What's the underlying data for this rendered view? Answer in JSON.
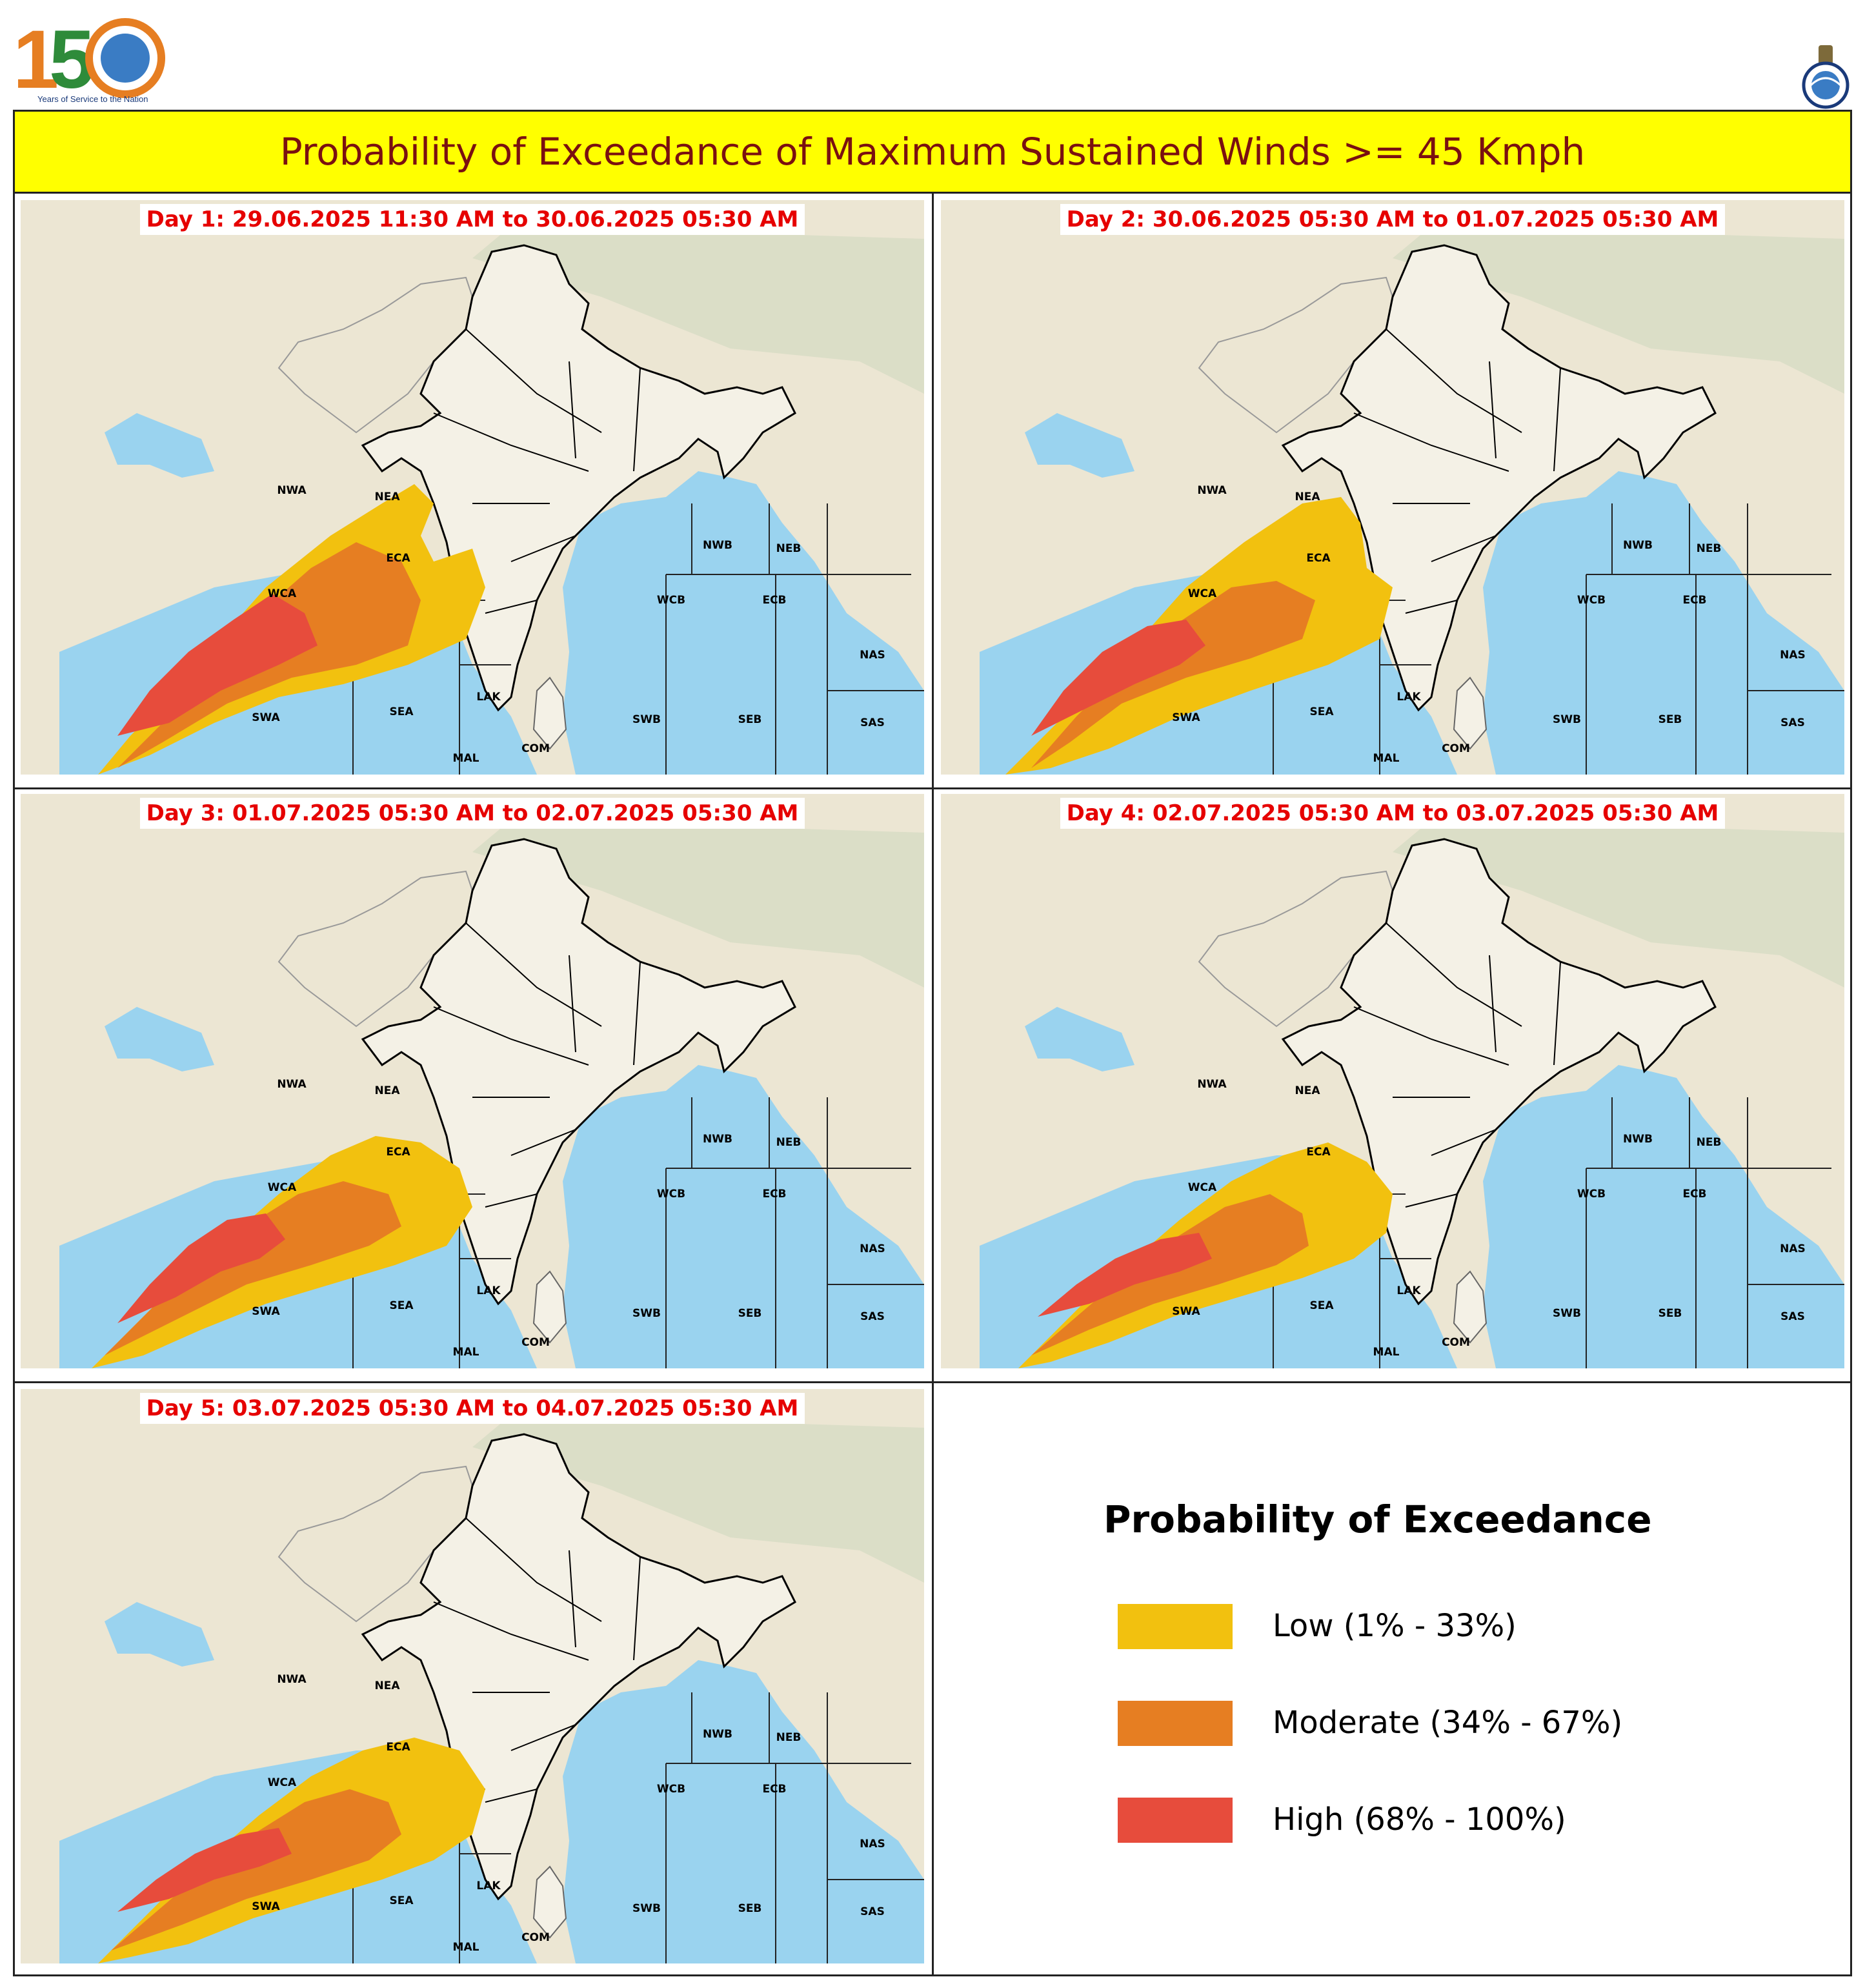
{
  "header": {
    "title": "Probability of Exceedance of Maximum Sustained Winds >= 45 Kmph",
    "logo_left_number": "150",
    "logo_left_caption": "Years of Service to the Nation"
  },
  "colors": {
    "low": "#f2c10f",
    "moderate": "#e67e22",
    "high": "#e74c3c",
    "sea": "#9ad3ef",
    "land": "#ece6d3",
    "title_bg": "#ffff00",
    "title_text": "#7a1010",
    "day_label": "#e60000"
  },
  "panels": [
    {
      "label": "Day 1: 29.06.2025 11:30 AM to 30.06.2025 05:30 AM"
    },
    {
      "label": "Day 2: 30.06.2025 05:30 AM to 01.07.2025 05:30 AM"
    },
    {
      "label": "Day 3: 01.07.2025 05:30 AM to 02.07.2025 05:30 AM"
    },
    {
      "label": "Day 4: 02.07.2025 05:30 AM to 03.07.2025 05:30 AM"
    },
    {
      "label": "Day 5: 03.07.2025 05:30 AM to 04.07.2025 05:30 AM"
    }
  ],
  "regions": {
    "nwa": "NWA",
    "nea": "NEA",
    "wca": "WCA",
    "eca": "ECA",
    "swa": "SWA",
    "sea": "SEA",
    "lak": "LAK",
    "mal": "MAL",
    "com": "COM",
    "nwb": "NWB",
    "neb": "NEB",
    "wcb": "WCB",
    "ecb": "ECB",
    "swb": "SWB",
    "seb": "SEB",
    "nas": "NAS",
    "sas": "SAS"
  },
  "legend": {
    "title": "Probability of Exceedance",
    "items": [
      {
        "label": "Low (1% - 33%)",
        "level": "low"
      },
      {
        "label": "Moderate (34% - 67%)",
        "level": "moderate"
      },
      {
        "label": "High (68% - 100%)",
        "level": "high"
      }
    ]
  }
}
